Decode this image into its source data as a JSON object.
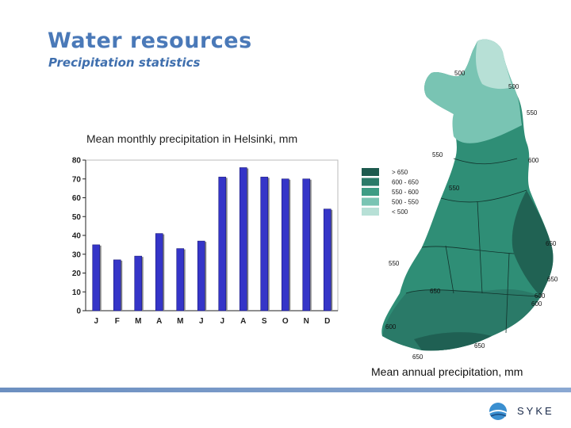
{
  "slide": {
    "title": "Water resources",
    "subtitle": "Precipitation statistics",
    "chart_caption": "Mean monthly precipitation in Helsinki, mm",
    "map_caption": "Mean annual precipitation, mm",
    "logo_text": "SYKE"
  },
  "chart_data": {
    "type": "bar",
    "categories": [
      "J",
      "F",
      "M",
      "A",
      "M",
      "J",
      "J",
      "A",
      "S",
      "O",
      "N",
      "D"
    ],
    "values": [
      35,
      27,
      29,
      41,
      33,
      37,
      71,
      76,
      71,
      70,
      70,
      54
    ],
    "title": "Mean monthly precipitation in Helsinki, mm",
    "xlabel": "",
    "ylabel": "",
    "ylim": [
      0,
      80
    ],
    "yticks": [
      0,
      10,
      20,
      30,
      40,
      50,
      60,
      70,
      80
    ],
    "grid": false,
    "bar_color": "#3535c8"
  },
  "map": {
    "legend": [
      {
        "label": "> 650",
        "color": "#1d5a4e"
      },
      {
        "label": "600 - 650",
        "color": "#2a7a68"
      },
      {
        "label": "550 - 600",
        "color": "#3d9c84"
      },
      {
        "label": "500 - 550",
        "color": "#79c4b3"
      },
      {
        "label": "< 500",
        "color": "#b7e0d6"
      }
    ],
    "labels": [
      "500",
      "500",
      "550",
      "550",
      "600",
      "550",
      "650",
      "550",
      "650",
      "650",
      "600",
      "600",
      "600",
      "650",
      "650"
    ]
  }
}
